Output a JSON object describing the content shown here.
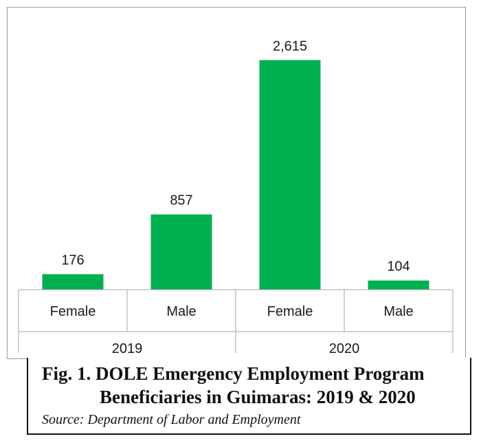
{
  "chart_data": {
    "type": "bar",
    "groups": [
      "2019",
      "2020"
    ],
    "categories": [
      "Female",
      "Male",
      "Female",
      "Male"
    ],
    "values": [
      176,
      857,
      2615,
      104
    ],
    "data_labels": [
      "176",
      "857",
      "2,615",
      "104"
    ],
    "bar_color": "#00b050",
    "ylim": [
      0,
      2900
    ],
    "grid": false,
    "legend": "none"
  },
  "caption": {
    "line1": "Fig. 1. DOLE Emergency Employment Program",
    "line2": "Beneficiaries in Guimaras: 2019 & 2020",
    "source": "Source: Department of Labor and Employment"
  }
}
